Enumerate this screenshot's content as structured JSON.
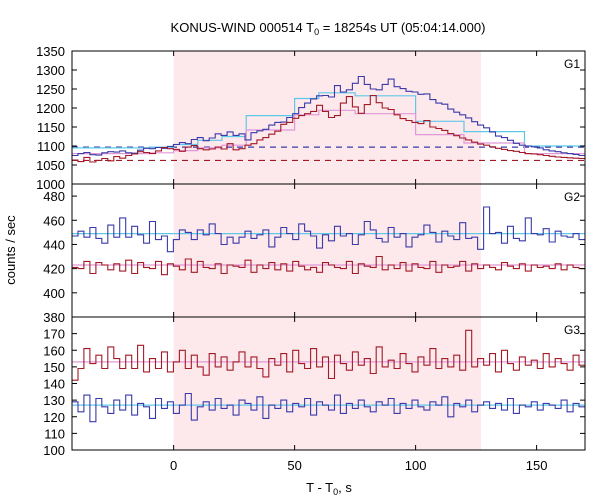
{
  "chart_data": {
    "type": "line",
    "title_main": "KONUS-WIND 000514 T",
    "title_sub": "0",
    "title_rest": " = 18254s UT (05:04:14.000)",
    "xlabel_main": "T - T",
    "xlabel_sub": "0",
    "xlabel_rest": ", s",
    "ylabel": "counts / sec",
    "xlim": [
      -42,
      170
    ],
    "x_ticks": [
      0,
      50,
      100,
      150
    ],
    "highlight_interval": [
      0,
      127
    ],
    "colors": {
      "series_a": "#3a3aa8",
      "series_b": "#a21a26",
      "model_a": "#5ec8e8",
      "model_b": "#e098d8",
      "highlight": "#fde8ec"
    },
    "panels": [
      {
        "label": "G1",
        "ylim": [
          1000,
          1350
        ],
        "y_ticks": [
          1000,
          1050,
          1100,
          1150,
          1200,
          1250,
          1300,
          1350
        ],
        "series": [
          {
            "role": "a",
            "values": [
              1075,
              1080,
              1083,
              1077,
              1076,
              1082,
              1085,
              1084,
              1087,
              1082,
              1081,
              1089,
              1094,
              1093,
              1096,
              1094,
              1099,
              1104,
              1109,
              1106,
              1117,
              1122,
              1114,
              1121,
              1132,
              1128,
              1137,
              1128,
              1132,
              1116,
              1135,
              1140,
              1144,
              1155,
              1162,
              1163,
              1175,
              1185,
              1201,
              1213,
              1224,
              1232,
              1233,
              1229,
              1259,
              1242,
              1248,
              1265,
              1283,
              1262,
              1250,
              1248,
              1262,
              1276,
              1256,
              1251,
              1244,
              1242,
              1236,
              1237,
              1222,
              1213,
              1210,
              1197,
              1189,
              1182,
              1174,
              1164,
              1155,
              1148,
              1137,
              1126,
              1122,
              1115,
              1107,
              1102,
              1100,
              1098,
              1095,
              1090,
              1087,
              1085,
              1082,
              1080,
              1078,
              1075
            ]
          },
          {
            "role": "b",
            "values": [
              1063,
              1059,
              1070,
              1058,
              1062,
              1067,
              1061,
              1072,
              1068,
              1075,
              1079,
              1085,
              1083,
              1080,
              1087,
              1096,
              1093,
              1091,
              1086,
              1097,
              1101,
              1093,
              1090,
              1092,
              1097,
              1092,
              1106,
              1090,
              1093,
              1102,
              1106,
              1116,
              1122,
              1131,
              1139,
              1157,
              1162,
              1173,
              1180,
              1185,
              1191,
              1207,
              1191,
              1175,
              1180,
              1213,
              1230,
              1203,
              1186,
              1209,
              1233,
              1214,
              1200,
              1196,
              1182,
              1172,
              1167,
              1162,
              1159,
              1167,
              1150,
              1146,
              1141,
              1133,
              1127,
              1121,
              1116,
              1110,
              1105,
              1102,
              1098,
              1094,
              1091,
              1088,
              1086,
              1083,
              1080,
              1079,
              1077,
              1075,
              1073,
              1071,
              1070,
              1069,
              1068,
              1067
            ]
          }
        ],
        "models": [
          {
            "role": "a",
            "x": [
              -42,
              -10,
              0,
              10,
              20,
              30,
              50,
              60,
              75,
              100,
              120,
              145
            ],
            "values": [
              1095,
              1097,
              1104,
              1115,
              1125,
              1180,
              1225,
              1240,
              1232,
              1165,
              1138,
              1100
            ]
          },
          {
            "role": "b",
            "x": [
              -42,
              -10,
              0,
              10,
              20,
              30,
              50,
              60,
              75,
              100,
              120,
              145
            ],
            "values": [
              1080,
              1082,
              1088,
              1095,
              1102,
              1142,
              1182,
              1194,
              1185,
              1130,
              1108,
              1080
            ]
          }
        ],
        "backgrounds": [
          {
            "role": "a",
            "value": 1097
          },
          {
            "role": "b",
            "value": 1062
          }
        ]
      },
      {
        "label": "G2",
        "ylim": [
          380,
          490
        ],
        "y_ticks": [
          380,
          400,
          420,
          440,
          460,
          480
        ],
        "series": [
          {
            "role": "a",
            "values": [
              447,
              451,
              446,
              454,
              445,
              441,
              456,
              446,
              462,
              446,
              455,
              448,
              441,
              459,
              444,
              447,
              434,
              444,
              452,
              450,
              444,
              452,
              448,
              457,
              449,
              440,
              446,
              441,
              446,
              451,
              445,
              448,
              452,
              438,
              446,
              454,
              449,
              444,
              457,
              451,
              447,
              437,
              448,
              443,
              455,
              447,
              449,
              440,
              448,
              459,
              452,
              445,
              442,
              454,
              446,
              449,
              438,
              446,
              448,
              456,
              450,
              442,
              451,
              447,
              444,
              458,
              445,
              446,
              436,
              471,
              449,
              450,
              441,
              455,
              445,
              443,
              462,
              449,
              448,
              453,
              442,
              451,
              447,
              446,
              449,
              444
            ]
          },
          {
            "role": "b",
            "values": [
              421,
              420,
              426,
              416,
              425,
              423,
              419,
              424,
              418,
              427,
              416,
              425,
              421,
              420,
              426,
              415,
              424,
              422,
              419,
              428,
              417,
              426,
              421,
              420,
              424,
              416,
              423,
              422,
              421,
              427,
              417,
              423,
              420,
              425,
              419,
              424,
              418,
              426,
              422,
              419,
              421,
              417,
              425,
              423,
              421,
              420,
              426,
              416,
              424,
              422,
              421,
              430,
              419,
              423,
              420,
              425,
              418,
              424,
              421,
              420,
              426,
              417,
              423,
              421,
              422,
              426,
              418,
              424,
              420,
              423,
              421,
              419,
              425,
              422,
              420,
              424,
              418,
              423,
              421,
              422,
              420,
              424,
              419,
              423,
              421,
              420
            ]
          }
        ],
        "models": [
          {
            "role": "a",
            "x": [
              -42,
              170
            ],
            "values": [
              449,
              449
            ]
          },
          {
            "role": "b",
            "x": [
              -42,
              170
            ],
            "values": [
              423,
              423
            ]
          }
        ]
      },
      {
        "label": "G3",
        "ylim": [
          100,
          180
        ],
        "y_ticks": [
          100,
          110,
          120,
          130,
          140,
          150,
          160,
          170
        ],
        "series": [
          {
            "role": "a",
            "values": [
              129,
              123,
              133,
              117,
              131,
              126,
              122,
              130,
              124,
              133,
              121,
              128,
              126,
              119,
              131,
              125,
              129,
              122,
              127,
              134,
              118,
              126,
              129,
              124,
              131,
              125,
              127,
              121,
              130,
              128,
              124,
              132,
              119,
              127,
              125,
              130,
              123,
              128,
              126,
              131,
              121,
              129,
              127,
              124,
              133,
              122,
              128,
              125,
              130,
              126,
              123,
              129,
              127,
              131,
              122,
              128,
              125,
              130,
              126,
              124,
              129,
              127,
              132,
              120,
              128,
              126,
              130,
              123,
              127,
              129,
              125,
              128,
              124,
              131,
              122,
              127,
              126,
              129,
              124,
              128,
              127,
              125,
              130,
              123,
              128,
              126
            ]
          },
          {
            "role": "b",
            "values": [
              142,
              149,
              161,
              152,
              157,
              149,
              162,
              155,
              149,
              157,
              149,
              163,
              147,
              155,
              149,
              159,
              147,
              153,
              160,
              149,
              157,
              150,
              145,
              158,
              150,
              156,
              148,
              153,
              159,
              150,
              156,
              149,
              144,
              155,
              151,
              158,
              147,
              160,
              152,
              149,
              161,
              150,
              156,
              143,
              157,
              152,
              148,
              159,
              151,
              155,
              146,
              162,
              150,
              154,
              149,
              158,
              152,
              147,
              156,
              151,
              161,
              149,
              155,
              150,
              157,
              148,
              172,
              150,
              155,
              151,
              158,
              147,
              160,
              152,
              148,
              156,
              151,
              154,
              149,
              158,
              150,
              155,
              152,
              148,
              157,
              151
            ]
          }
        ],
        "models": [
          {
            "role": "a",
            "x": [
              -42,
              170
            ],
            "values": [
              127,
              127
            ]
          },
          {
            "role": "b",
            "x": [
              -42,
              170
            ],
            "values": [
              153,
              153
            ]
          }
        ]
      }
    ]
  }
}
